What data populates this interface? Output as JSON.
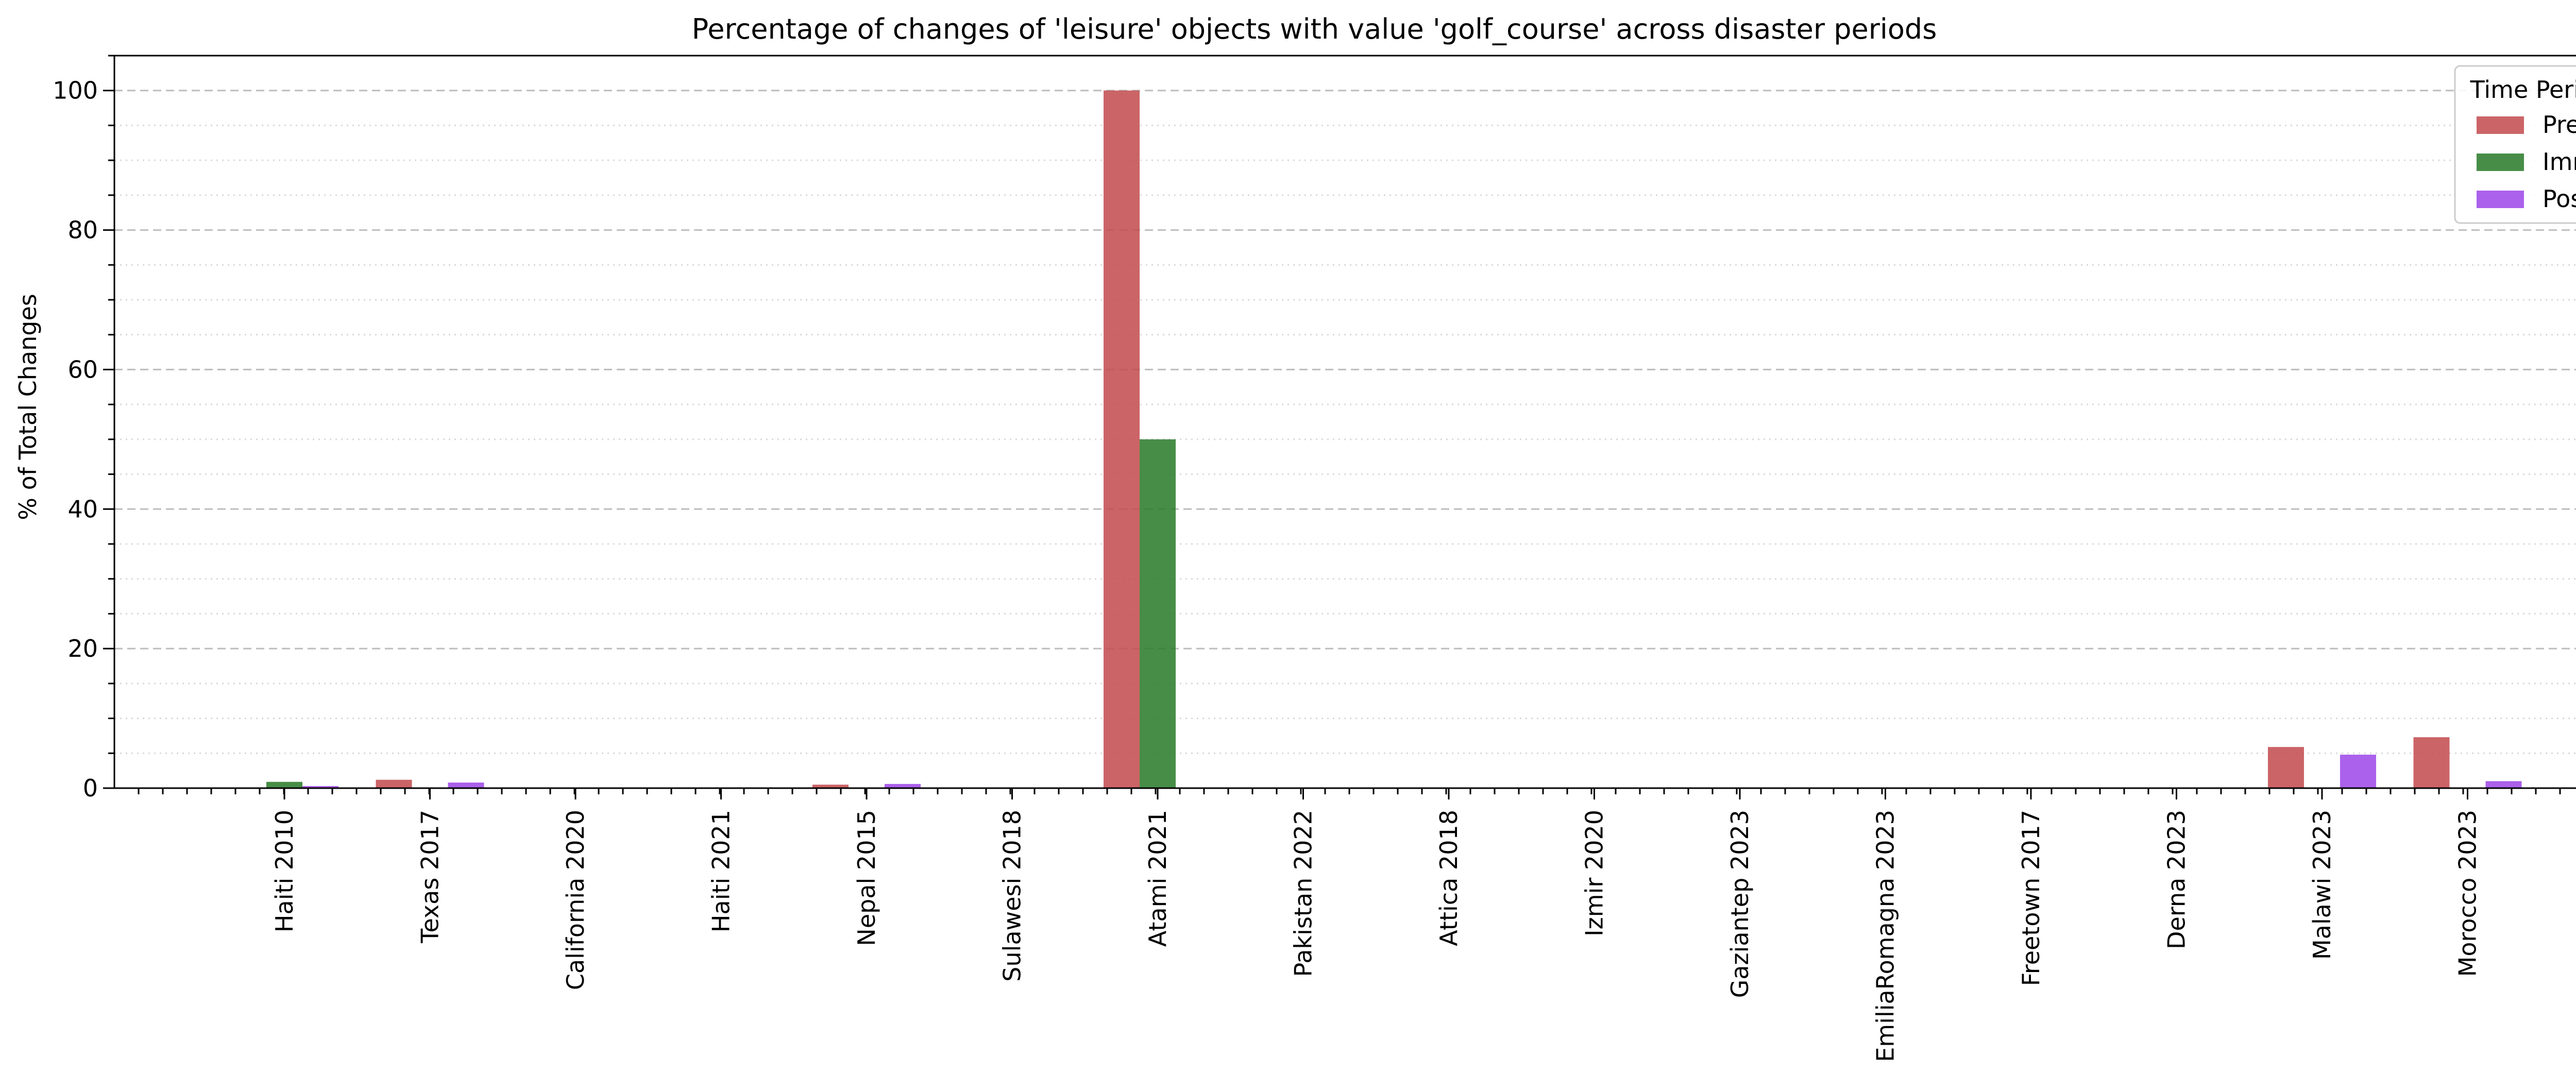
{
  "chart_data": {
    "type": "bar",
    "title": "Percentage of changes of 'leisure' objects with value 'golf_course' across disaster periods",
    "xlabel": "",
    "ylabel": "% of Total Changes",
    "ylim": [
      0,
      105
    ],
    "yticks": [
      "0",
      "20",
      "40",
      "60",
      "80",
      "100"
    ],
    "grid": true,
    "legend": {
      "title": "Time Period",
      "placement": "top-right"
    },
    "categories": [
      "Haiti 2010",
      "Texas 2017",
      "California 2020",
      "Haiti 2021",
      "Nepal 2015",
      "Sulawesi 2018",
      "Atami 2021",
      "Pakistan 2022",
      "Attica 2018",
      "Izmir 2020",
      "Gaziantep 2023",
      "EmiliaRomagna 2023",
      "Freetown 2017",
      "Derna 2023",
      "Malawi 2023",
      "Morocco 2023"
    ],
    "series": [
      {
        "name": "Pre",
        "color": "#c44e52",
        "values": [
          0,
          1.2,
          0,
          0,
          0.5,
          0,
          100,
          0,
          0,
          0,
          0,
          0,
          0,
          0,
          5.9,
          7.3
        ]
      },
      {
        "name": "Imm",
        "color": "#2e7d2e",
        "values": [
          0.9,
          0,
          0,
          0,
          0,
          0,
          50,
          0,
          0,
          0,
          0,
          0,
          0,
          0,
          0,
          0
        ]
      },
      {
        "name": "Post",
        "color": "#9f4be8",
        "values": [
          0.3,
          0.8,
          0,
          0,
          0.6,
          0,
          0,
          0,
          0,
          0,
          0,
          0,
          0,
          0,
          4.8,
          1.0
        ]
      }
    ]
  }
}
